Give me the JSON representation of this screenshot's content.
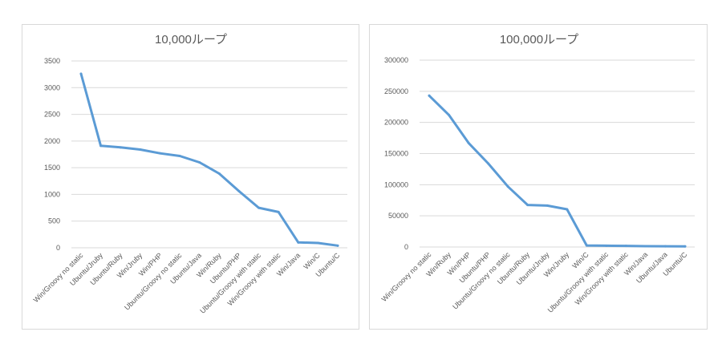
{
  "chart_data": [
    {
      "type": "line",
      "title": "10,000ループ",
      "xlabel": "",
      "ylabel": "",
      "ylim": [
        0,
        3500
      ],
      "yticks": [
        0,
        500,
        1000,
        1500,
        2000,
        2500,
        3000,
        3500
      ],
      "grid": true,
      "color": "#5b9bd5",
      "categories": [
        "Win/Groovy no static",
        "Ubuntu/Jruby",
        "Ubuntu/Ruby",
        "Win/Jruby",
        "Win/PHP",
        "Ubuntu/Groovy no static",
        "Ubuntu/Java",
        "Win/Ruby",
        "Ubuntu/PHP",
        "Ubuntu/Groovy with static",
        "Win/Groovy with static",
        "Win/Java",
        "Win/C",
        "Ubuntu/C"
      ],
      "values": [
        3260,
        1910,
        1880,
        1840,
        1770,
        1720,
        1600,
        1390,
        1060,
        750,
        670,
        100,
        90,
        40
      ]
    },
    {
      "type": "line",
      "title": "100,000ループ",
      "xlabel": "",
      "ylabel": "",
      "ylim": [
        0,
        300000
      ],
      "yticks": [
        0,
        50000,
        100000,
        150000,
        200000,
        250000,
        300000
      ],
      "grid": true,
      "color": "#5b9bd5",
      "categories": [
        "Win/Groovy no static",
        "Win/Ruby",
        "Win/PHP",
        "Ubuntu/PHP",
        "Ubuntu/Groovy no static",
        "Ubuntu/Ruby",
        "Ubuntu/Jruby",
        "Win/Jruby",
        "Win/C",
        "Ubuntu/Groovy with static",
        "Win/Groovy with static",
        "Win/Java",
        "Ubuntu/Java",
        "Ubuntu/C"
      ],
      "values": [
        243000,
        212000,
        167000,
        134000,
        97000,
        67500,
        66500,
        60500,
        2500,
        2000,
        1800,
        1300,
        1100,
        900
      ]
    }
  ]
}
